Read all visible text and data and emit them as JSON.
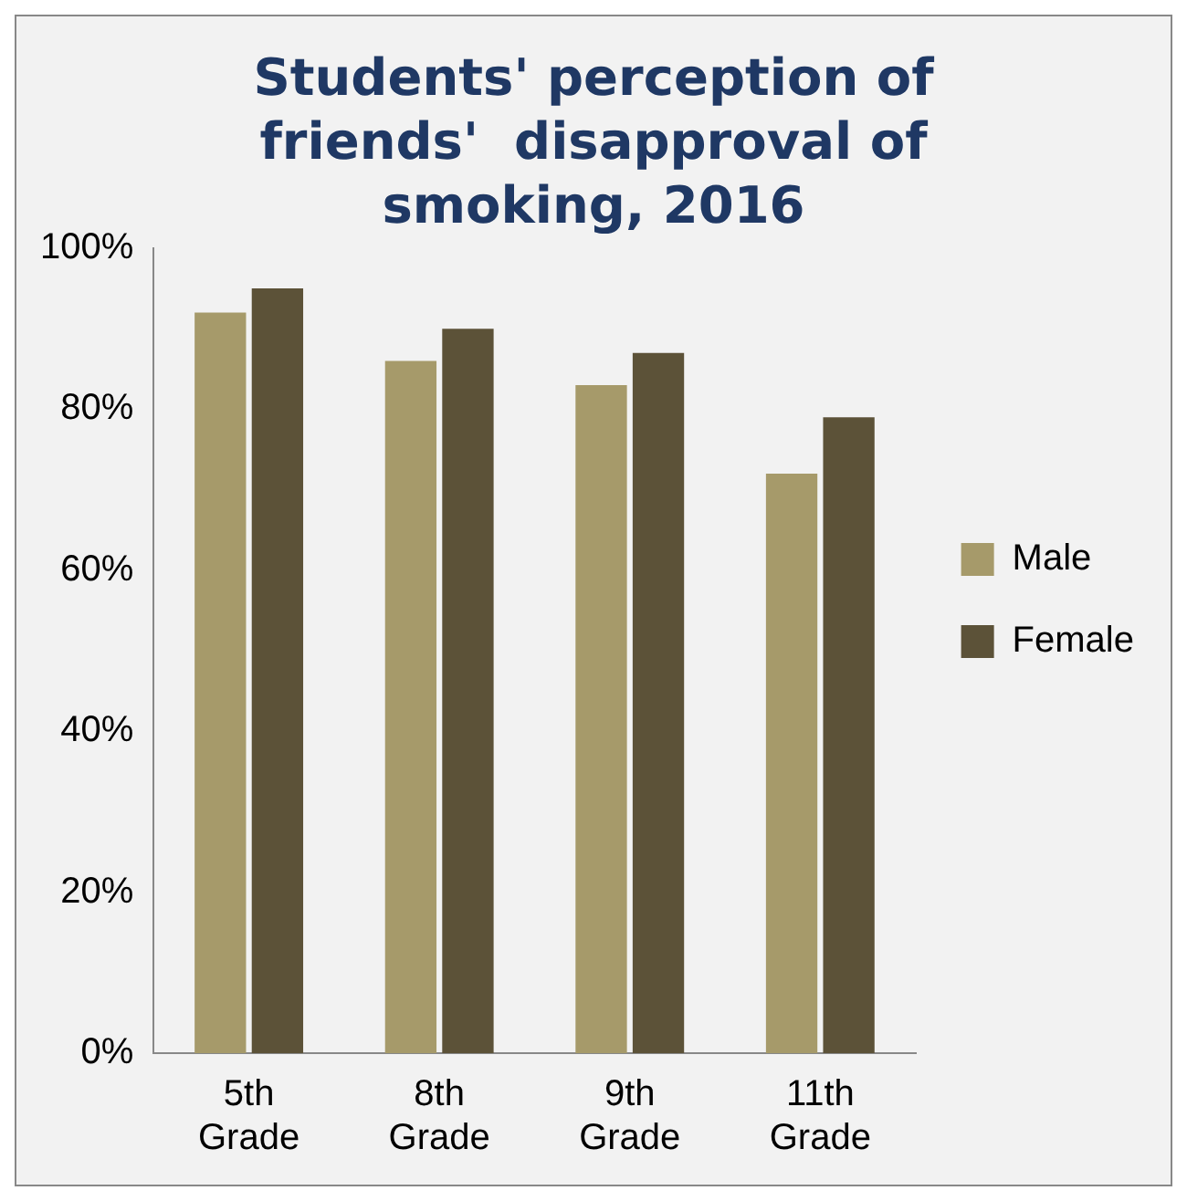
{
  "chart_data": {
    "type": "bar",
    "title": "Students' perception of friends'  disapproval of smoking, 2016",
    "categories": [
      "5th Grade",
      "8th Grade",
      "9th Grade",
      "11th Grade"
    ],
    "series": [
      {
        "name": "Male",
        "color": "#a69a6a",
        "values": [
          92,
          86,
          83,
          72
        ]
      },
      {
        "name": "Female",
        "color": "#5c5238",
        "values": [
          95,
          90,
          87,
          79
        ]
      }
    ],
    "ylim": [
      0,
      100
    ],
    "yticks": [
      {
        "value": 0,
        "label": "0%"
      },
      {
        "value": 20,
        "label": "20%"
      },
      {
        "value": 40,
        "label": "40%"
      },
      {
        "value": 60,
        "label": "60%"
      },
      {
        "value": 80,
        "label": "80%"
      },
      {
        "value": 100,
        "label": "100%"
      }
    ],
    "grid": false,
    "legend": "right"
  }
}
